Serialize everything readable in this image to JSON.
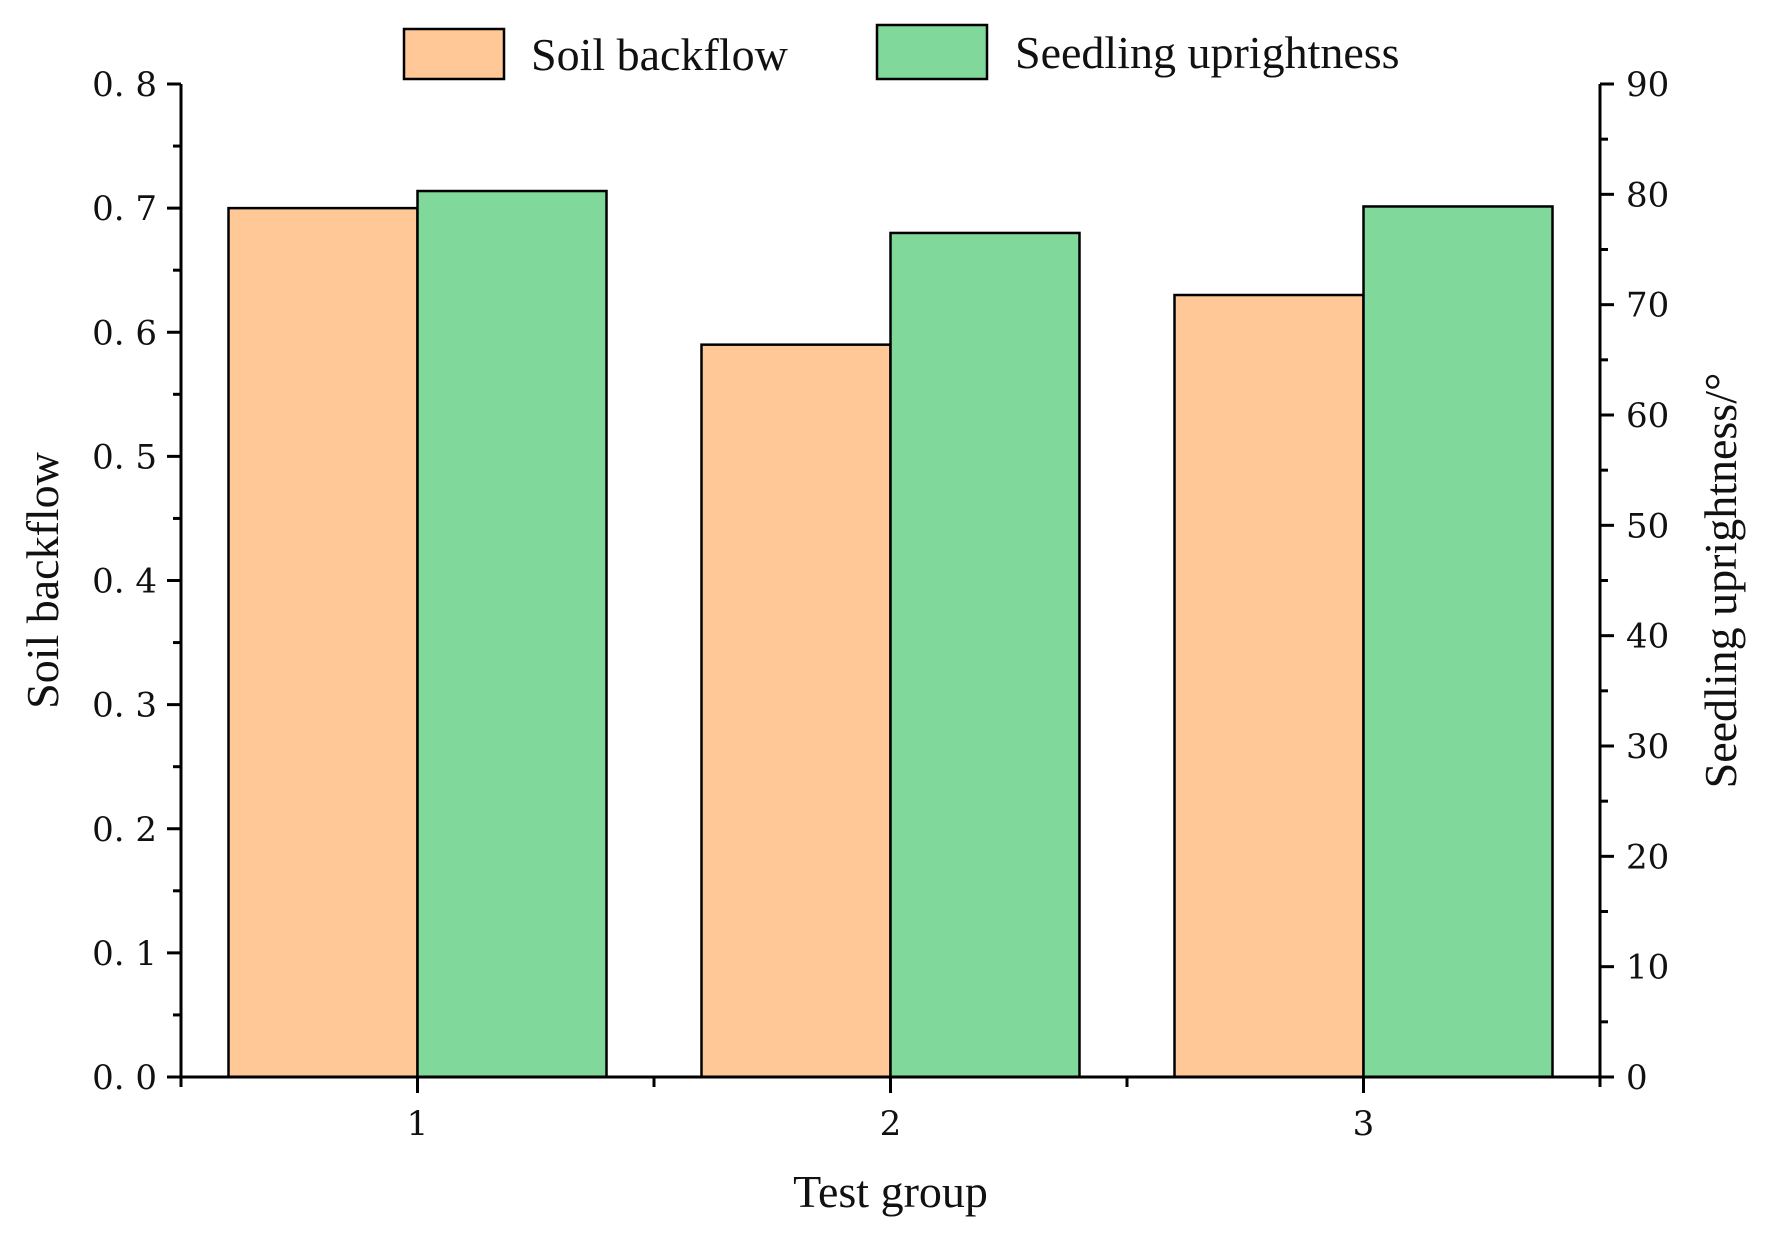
{
  "chart_data": {
    "type": "bar",
    "categories": [
      "1",
      "2",
      "3"
    ],
    "xlabel": "Test group",
    "ylabel": "Soil backflow",
    "y2label": "Seedling uprightness/°",
    "ylim": [
      0,
      0.8
    ],
    "y2lim": [
      0,
      90
    ],
    "yticks": [
      "0. 0",
      "0. 1",
      "0. 2",
      "0. 3",
      "0. 4",
      "0. 5",
      "0. 6",
      "0. 7",
      "0. 8"
    ],
    "y2ticks": [
      "0",
      "10",
      "20",
      "30",
      "40",
      "50",
      "60",
      "70",
      "80",
      "90"
    ],
    "grid": false,
    "legend_position": "top",
    "series": [
      {
        "name": "Soil backflow",
        "axis": "left",
        "color": "#FFC896",
        "values": [
          0.7,
          0.59,
          0.63
        ]
      },
      {
        "name": "Seedling uprightness",
        "axis": "right",
        "color": "#80D99B",
        "values": [
          80.3,
          76.5,
          78.9
        ]
      }
    ]
  }
}
